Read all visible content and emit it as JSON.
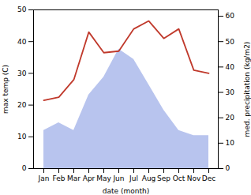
{
  "chart_data": {
    "type": "line",
    "categories": [
      "Jan",
      "Feb",
      "Mar",
      "Apr",
      "May",
      "Jun",
      "Jul",
      "Aug",
      "Sep",
      "Oct",
      "Nov",
      "Dec"
    ],
    "xlabel": "date (month)",
    "ylabel": "max temp (C)",
    "y2label": "med. precipitation (kg/m2)",
    "series": [
      {
        "type": "area",
        "axis": "y2",
        "color": "#b8c4ee",
        "values": [
          15,
          18,
          15,
          29,
          36,
          47,
          43,
          33,
          23,
          15,
          13,
          13
        ]
      },
      {
        "type": "line",
        "color": "#c0392b",
        "values": [
          21.5,
          22.5,
          28.0,
          43.0,
          36.5,
          37.0,
          44.0,
          46.5,
          41.0,
          44.0,
          31.0,
          30.0
        ]
      }
    ],
    "ylim": [
      0,
      50
    ],
    "yticks": [
      0,
      10,
      20,
      30,
      40,
      50
    ],
    "y2lim": [
      0,
      62.5
    ],
    "y2ticks": [
      0,
      10,
      20,
      30,
      40,
      50,
      60
    ],
    "grid": false
  }
}
